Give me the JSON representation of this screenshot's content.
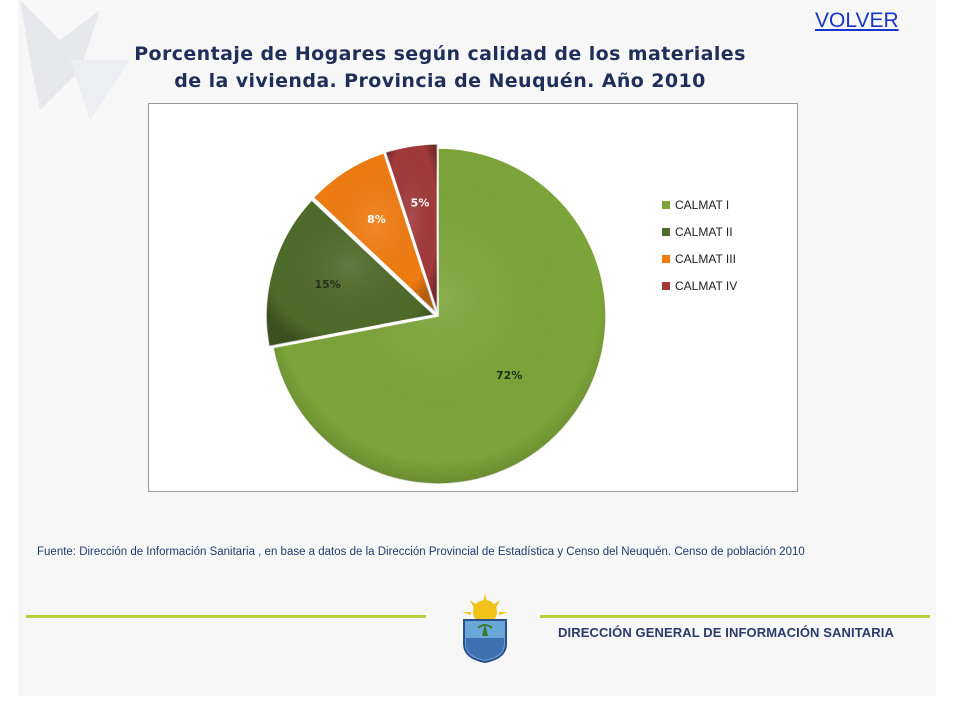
{
  "header": {
    "title_line1": "Porcentaje de Hogares según calidad de los materiales",
    "title_line2": "de la vivienda. Provincia de Neuquén. Año 2010",
    "volver_label": "VOLVER"
  },
  "chart_data": {
    "type": "pie",
    "title": "Porcentaje de Hogares según calidad de los materiales de la vivienda. Provincia de Neuquén. Año 2010",
    "categories": [
      "CALMAT I",
      "CALMAT II",
      "CALMAT III",
      "CALMAT IV"
    ],
    "values": [
      72,
      15,
      8,
      5
    ],
    "labels": [
      "72%",
      "15%",
      "8%",
      "5%"
    ],
    "colors": [
      "#7da43a",
      "#4f6b2a",
      "#f07c11",
      "#a13a3b"
    ],
    "legend_position": "right"
  },
  "footer": {
    "source_text": "Fuente: Dirección de Información Sanitaria , en base a datos de la Dirección Provincial de Estadística y Censo del Neuquén. Censo de población 2010",
    "org_name": "DIRECCIÓN GENERAL DE INFORMACIÓN SANITARIA"
  }
}
